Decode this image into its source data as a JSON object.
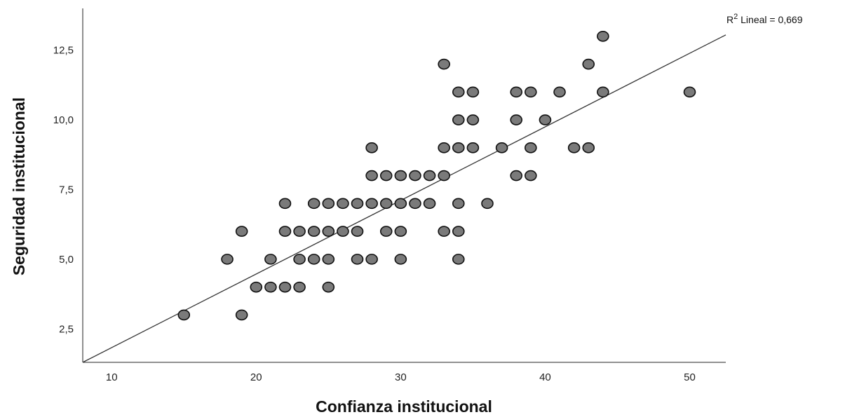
{
  "chart_data": {
    "type": "scatter",
    "title": "",
    "xlabel": "Confianza institucional",
    "ylabel": "Seguridad institucional",
    "xlim": [
      8,
      52.5
    ],
    "ylim": [
      1.3,
      14
    ],
    "xticks": [
      10,
      20,
      30,
      40,
      50
    ],
    "xtick_labels": [
      "10",
      "20",
      "30",
      "40",
      "50"
    ],
    "yticks": [
      2.5,
      5.0,
      7.5,
      10.0,
      12.5
    ],
    "ytick_labels": [
      "2,5",
      "5,0",
      "7,5",
      "10,0",
      "12,5"
    ],
    "grid": false,
    "marker_color": "#7a7a7a",
    "marker_edge_color": "#111111",
    "fit_line": {
      "label_prefix": "R",
      "label_sup": "2",
      "label_suffix": " Lineal = 0,669",
      "r2": 0.669,
      "from": [
        8,
        1.3
      ],
      "to": [
        52.5,
        13.05
      ]
    },
    "points": [
      {
        "x": 15,
        "y": 3
      },
      {
        "x": 19,
        "y": 3
      },
      {
        "x": 20,
        "y": 4
      },
      {
        "x": 21,
        "y": 4
      },
      {
        "x": 22,
        "y": 4
      },
      {
        "x": 23,
        "y": 4
      },
      {
        "x": 25,
        "y": 4
      },
      {
        "x": 18,
        "y": 5
      },
      {
        "x": 21,
        "y": 5
      },
      {
        "x": 23,
        "y": 5
      },
      {
        "x": 24,
        "y": 5
      },
      {
        "x": 25,
        "y": 5
      },
      {
        "x": 27,
        "y": 5
      },
      {
        "x": 28,
        "y": 5
      },
      {
        "x": 30,
        "y": 5
      },
      {
        "x": 34,
        "y": 5
      },
      {
        "x": 19,
        "y": 6
      },
      {
        "x": 22,
        "y": 6
      },
      {
        "x": 23,
        "y": 6
      },
      {
        "x": 24,
        "y": 6
      },
      {
        "x": 25,
        "y": 6
      },
      {
        "x": 26,
        "y": 6
      },
      {
        "x": 27,
        "y": 6
      },
      {
        "x": 29,
        "y": 6
      },
      {
        "x": 30,
        "y": 6
      },
      {
        "x": 33,
        "y": 6
      },
      {
        "x": 34,
        "y": 6
      },
      {
        "x": 22,
        "y": 7
      },
      {
        "x": 24,
        "y": 7
      },
      {
        "x": 25,
        "y": 7
      },
      {
        "x": 26,
        "y": 7
      },
      {
        "x": 27,
        "y": 7
      },
      {
        "x": 28,
        "y": 7
      },
      {
        "x": 29,
        "y": 7
      },
      {
        "x": 30,
        "y": 7
      },
      {
        "x": 31,
        "y": 7
      },
      {
        "x": 32,
        "y": 7
      },
      {
        "x": 34,
        "y": 7
      },
      {
        "x": 36,
        "y": 7
      },
      {
        "x": 28,
        "y": 8
      },
      {
        "x": 29,
        "y": 8
      },
      {
        "x": 30,
        "y": 8
      },
      {
        "x": 31,
        "y": 8
      },
      {
        "x": 32,
        "y": 8
      },
      {
        "x": 33,
        "y": 8
      },
      {
        "x": 38,
        "y": 8
      },
      {
        "x": 39,
        "y": 8
      },
      {
        "x": 28,
        "y": 9
      },
      {
        "x": 33,
        "y": 9
      },
      {
        "x": 34,
        "y": 9
      },
      {
        "x": 35,
        "y": 9
      },
      {
        "x": 37,
        "y": 9
      },
      {
        "x": 39,
        "y": 9
      },
      {
        "x": 42,
        "y": 9
      },
      {
        "x": 43,
        "y": 9
      },
      {
        "x": 34,
        "y": 10
      },
      {
        "x": 35,
        "y": 10
      },
      {
        "x": 38,
        "y": 10
      },
      {
        "x": 40,
        "y": 10
      },
      {
        "x": 34,
        "y": 11
      },
      {
        "x": 35,
        "y": 11
      },
      {
        "x": 38,
        "y": 11
      },
      {
        "x": 39,
        "y": 11
      },
      {
        "x": 41,
        "y": 11
      },
      {
        "x": 44,
        "y": 11
      },
      {
        "x": 50,
        "y": 11
      },
      {
        "x": 33,
        "y": 12
      },
      {
        "x": 43,
        "y": 12
      },
      {
        "x": 44,
        "y": 13
      }
    ]
  }
}
